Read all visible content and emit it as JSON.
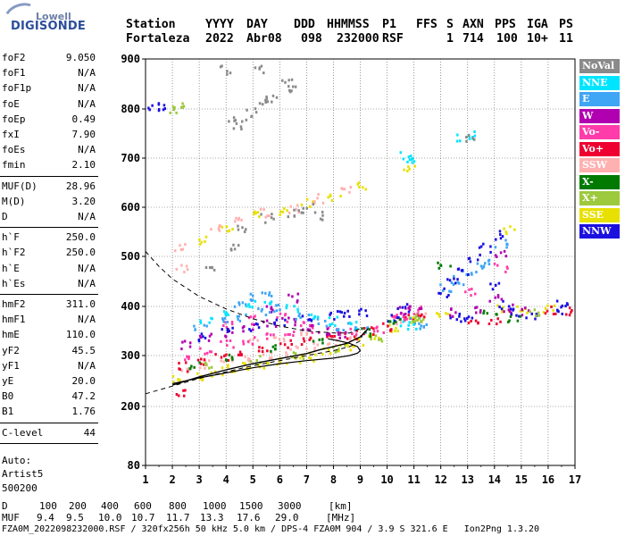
{
  "logo": {
    "top": "Lowell",
    "bottom": "DIGISONDE"
  },
  "header": {
    "labels": [
      "Station",
      "YYYY",
      "DAY",
      "DDD",
      "HHMMSS",
      "P1",
      "FFS",
      "S",
      "AXN",
      "PPS",
      "IGA",
      "PS"
    ],
    "values": [
      "Fortaleza",
      "2022",
      "Abr08",
      "098",
      "232000",
      "RSF",
      "1",
      "714",
      "100",
      "10+",
      "11"
    ]
  },
  "params": {
    "group1": [
      {
        "label": "foF2",
        "value": "9.050"
      },
      {
        "label": "foF1",
        "value": "N/A"
      },
      {
        "label": "foF1p",
        "value": "N/A"
      },
      {
        "label": "foE",
        "value": "N/A"
      },
      {
        "label": "foEp",
        "value": "0.49"
      },
      {
        "label": "fxI",
        "value": "7.90"
      },
      {
        "label": "foEs",
        "value": "N/A"
      },
      {
        "label": "fmin",
        "value": "2.10"
      }
    ],
    "group2": [
      {
        "label": "MUF(D)",
        "value": "28.96"
      },
      {
        "label": "M(D)",
        "value": "3.20"
      },
      {
        "label": "D",
        "value": "N/A"
      }
    ],
    "group3": [
      {
        "label": "h`F",
        "value": "250.0"
      },
      {
        "label": "h`F2",
        "value": "250.0"
      },
      {
        "label": "h`E",
        "value": "N/A"
      },
      {
        "label": "h`Es",
        "value": "N/A"
      }
    ],
    "group4": [
      {
        "label": "hmF2",
        "value": "311.0"
      },
      {
        "label": "hmF1",
        "value": "N/A"
      },
      {
        "label": "hmE",
        "value": "110.0"
      },
      {
        "label": "yF2",
        "value": "45.5"
      },
      {
        "label": "yF1",
        "value": "N/A"
      },
      {
        "label": "yE",
        "value": "20.0"
      },
      {
        "label": "B0",
        "value": "47.2"
      },
      {
        "label": "B1",
        "value": "1.76"
      }
    ],
    "group5": [
      {
        "label": "C-level",
        "value": "44"
      }
    ],
    "auto": [
      "Auto:",
      "Artist5",
      "500200"
    ]
  },
  "legend": [
    {
      "label": "NoVal",
      "color": "#8a8a8a"
    },
    {
      "label": "NNE",
      "color": "#00e5ff"
    },
    {
      "label": "E",
      "color": "#3fa5f5"
    },
    {
      "label": "W",
      "color": "#b000b0"
    },
    {
      "label": "Vo-",
      "color": "#ff3caa"
    },
    {
      "label": "Vo+",
      "color": "#ee0030"
    },
    {
      "label": "SSW",
      "color": "#ffb0b0"
    },
    {
      "label": "X-",
      "color": "#007a00"
    },
    {
      "label": "X+",
      "color": "#9dc93c"
    },
    {
      "label": "SSE",
      "color": "#e8e000"
    },
    {
      "label": "NNW",
      "color": "#1c10e0"
    }
  ],
  "chart_data": {
    "type": "scatter",
    "xlim": [
      1,
      17
    ],
    "ylim": [
      80,
      900
    ],
    "x_ticks": [
      "1",
      "2",
      "3",
      "4",
      "5",
      "6",
      "7",
      "8",
      "9",
      "10",
      "11",
      "12",
      "13",
      "14",
      "15",
      "16",
      "17"
    ],
    "y_ticks": [
      "80",
      "200",
      "300",
      "400",
      "500",
      "600",
      "700",
      "800",
      "900"
    ],
    "grid": true,
    "legend_position": "right",
    "xlabel": "",
    "ylabel": "",
    "title": "",
    "clusters": [
      {
        "color": "#e8e000",
        "points": [
          [
            2.2,
            255
          ],
          [
            3,
            262
          ],
          [
            3.6,
            270
          ],
          [
            4.2,
            275
          ],
          [
            4.8,
            280
          ],
          [
            5.4,
            285
          ],
          [
            6,
            290
          ],
          [
            6.6,
            295
          ],
          [
            7.2,
            300
          ],
          [
            7.8,
            308
          ],
          [
            8.4,
            318
          ],
          [
            8.9,
            330
          ],
          [
            9.5,
            345
          ],
          [
            10.3,
            360
          ],
          [
            11,
            372
          ],
          [
            3.2,
            535
          ],
          [
            4,
            555
          ],
          [
            5,
            585
          ],
          [
            6,
            595
          ],
          [
            7,
            610
          ],
          [
            8,
            625
          ],
          [
            9,
            645
          ],
          [
            10.8,
            685
          ],
          [
            14.3,
            400
          ],
          [
            15,
            398
          ],
          [
            16,
            396
          ],
          [
            14.5,
            555
          ],
          [
            12,
            385
          ]
        ]
      },
      {
        "color": "#ffb0b0",
        "points": [
          [
            2.5,
            275
          ],
          [
            3.2,
            285
          ],
          [
            4,
            295
          ],
          [
            4.8,
            300
          ],
          [
            5.6,
            305
          ],
          [
            6.4,
            312
          ],
          [
            7.2,
            320
          ],
          [
            8,
            330
          ],
          [
            8.8,
            342
          ],
          [
            10.5,
            370
          ],
          [
            11.2,
            385
          ],
          [
            5,
            330
          ],
          [
            6,
            340
          ],
          [
            7,
            345
          ],
          [
            3.5,
            560
          ],
          [
            4.5,
            575
          ],
          [
            5.5,
            590
          ],
          [
            6.5,
            600
          ],
          [
            7.5,
            620
          ],
          [
            8.5,
            640
          ],
          [
            2.3,
            480
          ],
          [
            2.2,
            520
          ]
        ]
      },
      {
        "color": "#ee0030",
        "points": [
          [
            2.3,
            280
          ],
          [
            3,
            290
          ],
          [
            3.8,
            300
          ],
          [
            4.6,
            310
          ],
          [
            5.4,
            318
          ],
          [
            6.2,
            325
          ],
          [
            7,
            332
          ],
          [
            7.8,
            338
          ],
          [
            8.6,
            345
          ],
          [
            9.3,
            352
          ],
          [
            10,
            362
          ],
          [
            10.8,
            378
          ],
          [
            11.3,
            390
          ],
          [
            16,
            395
          ],
          [
            16.8,
            392
          ],
          [
            13.2,
            365
          ],
          [
            14,
            370
          ],
          [
            2.3,
            230
          ]
        ]
      },
      {
        "color": "#ff3caa",
        "points": [
          [
            2.4,
            300
          ],
          [
            3.2,
            312
          ],
          [
            4,
            325
          ],
          [
            4.8,
            335
          ],
          [
            5.6,
            345
          ],
          [
            6.4,
            350
          ],
          [
            7.2,
            355
          ],
          [
            8,
            352
          ],
          [
            8.8,
            350
          ],
          [
            9.6,
            358
          ],
          [
            10.4,
            380
          ],
          [
            11,
            395
          ],
          [
            4,
            365
          ],
          [
            5,
            375
          ],
          [
            6,
            380
          ],
          [
            7,
            362
          ],
          [
            10.5,
            385
          ],
          [
            13,
            430
          ],
          [
            14.2,
            480
          ]
        ]
      },
      {
        "color": "#b000b0",
        "points": [
          [
            2.5,
            325
          ],
          [
            3.2,
            338
          ],
          [
            4,
            350
          ],
          [
            4.8,
            360
          ],
          [
            5.6,
            368
          ],
          [
            6.3,
            372
          ],
          [
            7,
            360
          ],
          [
            7.6,
            352
          ],
          [
            8.2,
            345
          ],
          [
            10.6,
            395
          ],
          [
            11,
            402
          ],
          [
            12.5,
            390
          ],
          [
            13.2,
            395
          ],
          [
            14,
            420
          ],
          [
            14.2,
            510
          ],
          [
            14.5,
            398
          ],
          [
            15,
            392
          ],
          [
            5.5,
            400
          ],
          [
            6.5,
            420
          ]
        ]
      },
      {
        "color": "#3fa5f5",
        "points": [
          [
            3,
            360
          ],
          [
            3.8,
            370
          ],
          [
            4.6,
            380
          ],
          [
            5.4,
            392
          ],
          [
            6,
            398
          ],
          [
            6.8,
            385
          ],
          [
            7.6,
            370
          ],
          [
            8.3,
            360
          ],
          [
            9,
            355
          ],
          [
            12.2,
            440
          ],
          [
            12.6,
            455
          ],
          [
            13,
            470
          ],
          [
            13.4,
            480
          ],
          [
            13.8,
            490
          ],
          [
            14.2,
            530
          ],
          [
            4.5,
            410
          ],
          [
            5,
            420
          ],
          [
            5.5,
            430
          ],
          [
            11,
            370
          ],
          [
            11.4,
            360
          ]
        ]
      },
      {
        "color": "#00e5ff",
        "points": [
          [
            3.2,
            375
          ],
          [
            4,
            392
          ],
          [
            4.8,
            405
          ],
          [
            5.6,
            412
          ],
          [
            6.4,
            398
          ],
          [
            7.2,
            385
          ],
          [
            8,
            372
          ],
          [
            8.8,
            365
          ],
          [
            10.4,
            370
          ],
          [
            10.8,
            365
          ],
          [
            10.9,
            700
          ],
          [
            10.7,
            710
          ],
          [
            12.8,
            745
          ],
          [
            13,
            748
          ]
        ]
      },
      {
        "color": "#1c10e0",
        "points": [
          [
            3,
            340
          ],
          [
            4,
            352
          ],
          [
            5,
            362
          ],
          [
            6,
            370
          ],
          [
            7,
            378
          ],
          [
            8,
            384
          ],
          [
            8.5,
            390
          ],
          [
            9,
            392
          ],
          [
            10.2,
            380
          ],
          [
            10.6,
            400
          ],
          [
            12,
            430
          ],
          [
            12.4,
            450
          ],
          [
            12.8,
            470
          ],
          [
            13.2,
            500
          ],
          [
            13.6,
            520
          ],
          [
            14,
            440
          ],
          [
            14.1,
            545
          ],
          [
            14.4,
            405
          ],
          [
            14.8,
            390
          ],
          [
            12.5,
            380
          ],
          [
            13,
            375
          ],
          [
            15.3,
            380
          ],
          [
            1.3,
            810
          ],
          [
            1.6,
            808
          ],
          [
            16.4,
            395
          ],
          [
            16.5,
            405
          ]
        ]
      },
      {
        "color": "#007a00",
        "points": [
          [
            2.8,
            285
          ],
          [
            4.2,
            300
          ],
          [
            5.8,
            315
          ],
          [
            7.4,
            330
          ],
          [
            9.2,
            350
          ],
          [
            10.3,
            372
          ],
          [
            12.1,
            485
          ],
          [
            14.7,
            380
          ],
          [
            13.8,
            390
          ]
        ]
      },
      {
        "color": "#9dc93c",
        "points": [
          [
            3.4,
            280
          ],
          [
            5,
            295
          ],
          [
            6.6,
            305
          ],
          [
            8.2,
            318
          ],
          [
            9.6,
            340
          ],
          [
            10.9,
            375
          ],
          [
            11.2,
            380
          ],
          [
            15.5,
            390
          ],
          [
            2.1,
            800
          ],
          [
            2.2,
            805
          ]
        ]
      },
      {
        "color": "#8a8a8a",
        "points": [
          [
            3.3,
            480
          ],
          [
            4.2,
            520
          ],
          [
            4.6,
            560
          ],
          [
            5.5,
            580
          ],
          [
            6.5,
            590
          ],
          [
            7,
            600
          ],
          [
            7.4,
            585
          ],
          [
            4.3,
            770
          ],
          [
            4.5,
            780
          ],
          [
            4.9,
            795
          ],
          [
            5.4,
            815
          ],
          [
            5.6,
            825
          ],
          [
            6.3,
            855
          ],
          [
            6.5,
            840
          ],
          [
            5.2,
            880
          ],
          [
            4,
            880
          ],
          [
            13,
            740
          ]
        ]
      }
    ],
    "trace_solid": [
      [
        2,
        242
      ],
      [
        3,
        258
      ],
      [
        4,
        272
      ],
      [
        5,
        284
      ],
      [
        6,
        294
      ],
      [
        7,
        304
      ],
      [
        7.5,
        312
      ],
      [
        8,
        318
      ],
      [
        8.5,
        325
      ],
      [
        9,
        338
      ],
      [
        9.3,
        355
      ]
    ],
    "trace_solid_lower": [
      [
        2,
        245
      ],
      [
        3,
        256
      ],
      [
        4,
        266
      ],
      [
        5,
        276
      ],
      [
        6,
        284
      ],
      [
        7,
        290
      ],
      [
        8,
        295
      ],
      [
        8.6,
        300
      ],
      [
        8.9,
        305
      ],
      [
        9,
        310
      ],
      [
        8.9,
        318
      ],
      [
        8.6,
        325
      ],
      [
        8.2,
        330
      ],
      [
        7.8,
        334
      ]
    ],
    "trace_dashed_upper": [
      [
        1,
        510
      ],
      [
        1.5,
        480
      ],
      [
        2,
        455
      ],
      [
        3,
        420
      ],
      [
        4,
        395
      ],
      [
        5,
        375
      ],
      [
        6,
        360
      ],
      [
        7,
        350
      ],
      [
        8,
        346
      ],
      [
        8.6,
        346
      ],
      [
        9,
        355
      ]
    ],
    "trace_dashed_lower": [
      [
        1,
        225
      ],
      [
        2,
        240
      ],
      [
        3,
        255
      ],
      [
        4,
        268
      ],
      [
        5,
        280
      ],
      [
        6,
        290
      ],
      [
        7,
        300
      ],
      [
        8,
        310
      ],
      [
        8.6,
        318
      ],
      [
        9,
        330
      ],
      [
        9.1,
        345
      ]
    ]
  },
  "footer": {
    "d_label": "D",
    "d_values": [
      "100",
      "200",
      "400",
      "600",
      "800",
      "1000",
      "1500",
      "3000",
      "[km]"
    ],
    "muf_label": "MUF",
    "muf_values": [
      "9.4",
      "9.5",
      "10.0",
      "10.7",
      "11.7",
      "13.3",
      "17.6",
      "29.0",
      "[MHz]"
    ],
    "file_line": "FZA0M_2022098232000.RSF / 320fx256h 50 kHz 5.0 km / DPS-4 FZA0M 904 / 3.9 S 321.6 E   Ion2Png 1.3.20"
  }
}
